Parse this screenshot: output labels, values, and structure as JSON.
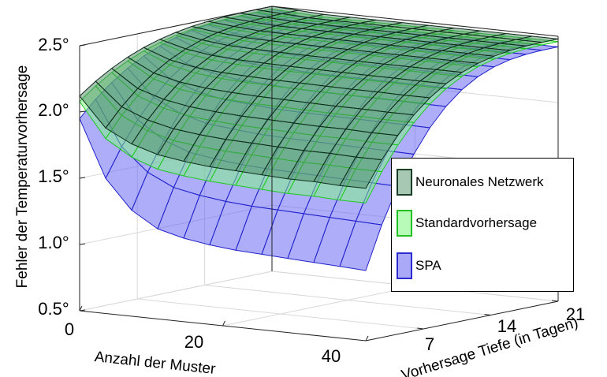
{
  "chart_data": {
    "type": "surface3d",
    "title": "",
    "xlabel": "Anzahl der Muster",
    "ylabel": "Vorhersage Tiefe (in Tagen)",
    "zlabel": "Fehler der Temperaturvorhersage",
    "x_ticks": [
      "0",
      "20",
      "40"
    ],
    "y_ticks": [
      "7",
      "14",
      "21"
    ],
    "z_ticks": [
      "0.5°",
      "1.0°",
      "1.5°",
      "2.0°",
      "2.5°"
    ],
    "xlim": [
      0,
      40
    ],
    "ylim": [
      1,
      21
    ],
    "zlim": [
      0.5,
      2.5
    ],
    "grid": true,
    "legend_position": "right",
    "series": [
      {
        "name": "SPA",
        "color": "#5c5cf5",
        "edge_color": "#2222cc",
        "edges_at_near_depth": [
          1.95,
          1.52,
          1.3,
          1.18,
          1.13,
          1.1,
          1.08,
          1.07,
          1.06,
          1.05,
          1.04,
          1.03
        ],
        "edges_at_far_depth": [
          2.48,
          2.45,
          2.44,
          2.43,
          2.43,
          2.42,
          2.42,
          2.42,
          2.42,
          2.42,
          2.42,
          2.42
        ]
      },
      {
        "name": "Standardvorhersage",
        "color": "#7dfa7d",
        "edge_color": "#1ec81e",
        "edges_at_near_depth": [
          2.08,
          1.82,
          1.7,
          1.63,
          1.6,
          1.58,
          1.57,
          1.56,
          1.55,
          1.55,
          1.54,
          1.54
        ],
        "edges_at_far_depth": [
          2.48,
          2.47,
          2.46,
          2.46,
          2.46,
          2.46,
          2.46,
          2.46,
          2.46,
          2.46,
          2.46,
          2.46
        ]
      },
      {
        "name": "Neuronales Netzwerk",
        "color": "#4a8a64",
        "edge_color": "#0c2d19",
        "edges_at_near_depth": [
          2.12,
          1.9,
          1.8,
          1.74,
          1.71,
          1.69,
          1.68,
          1.67,
          1.66,
          1.66,
          1.65,
          1.65
        ],
        "edges_at_far_depth": [
          2.5,
          2.49,
          2.48,
          2.48,
          2.48,
          2.48,
          2.48,
          2.48,
          2.48,
          2.48,
          2.48,
          2.48
        ]
      }
    ]
  },
  "legend": {
    "items": [
      {
        "label": "Neuronales Netzwerk",
        "swatch": "#a7c9b3",
        "border": "#1a3d26"
      },
      {
        "label": "Standardvorhersage",
        "swatch": "#b8fbb8",
        "border": "#22c022"
      },
      {
        "label": "SPA",
        "swatch": "#a9a9f7",
        "border": "#2b2bd0"
      }
    ]
  }
}
